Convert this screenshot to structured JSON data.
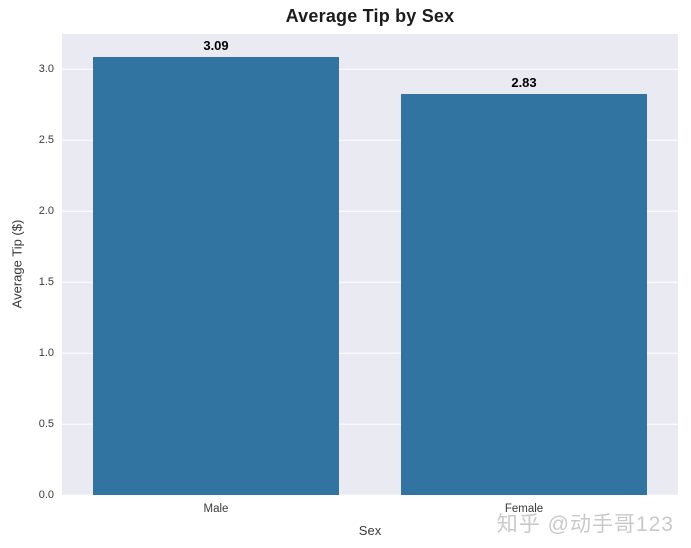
{
  "figure": {
    "watermark": "知乎 @动手哥123"
  },
  "chart_data": {
    "type": "bar",
    "title": "Average Tip by Sex",
    "categories": [
      "Male",
      "Female"
    ],
    "values": [
      3.09,
      2.83
    ],
    "bar_labels": [
      "3.09",
      "2.83"
    ],
    "xlabel": "Sex",
    "ylabel": "Average Tip ($)",
    "yticks": [
      0.0,
      0.5,
      1.0,
      1.5,
      2.0,
      2.5,
      3.0
    ],
    "ytick_labels": [
      "0.0",
      "0.5",
      "1.0",
      "1.5",
      "2.0",
      "2.5",
      "3.0"
    ],
    "ylim": [
      0,
      3.25
    ],
    "grid": true,
    "legend": "none",
    "colors": {
      "bar": "#3274a1",
      "plot_background": "#eaeaf2",
      "gridline": "#ffffff",
      "figure_background": "#ffffff",
      "title_text": "#1c1c1c",
      "tick_text": "#3a3a3a",
      "bar_label_text": "#000000",
      "watermark_text": "#c9c9c9"
    }
  }
}
